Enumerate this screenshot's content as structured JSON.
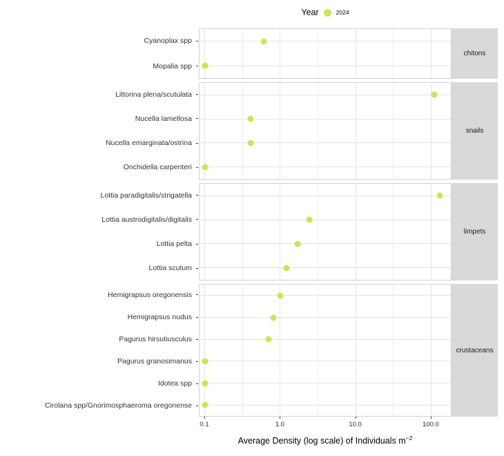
{
  "legend": {
    "title": "Year",
    "items": [
      {
        "label": "2024",
        "color": "#cbe558"
      }
    ]
  },
  "axis": {
    "x_title": "Average Density (log scale) of Individuals m",
    "x_title_sup": "−2",
    "x_tick_labels": [
      "0.1",
      "1.0",
      "10.0",
      "100.0"
    ]
  },
  "colors": {
    "point": "#cbe558",
    "grid_major": "#e4e4e4",
    "grid_minor": "#ededed",
    "panel_border": "#d2d2d2",
    "strip_bg": "#d9d9d9"
  },
  "chart_data": {
    "type": "scatter",
    "title": "",
    "xlabel": "Average Density (log scale) of Individuals m^-2",
    "x_scale": "log",
    "x_ticks": [
      0.1,
      1.0,
      10.0,
      100.0
    ],
    "x_minor_ticks": [
      0.316,
      3.16,
      31.6
    ],
    "xlim": [
      0.08,
      190
    ],
    "grid": true,
    "legend_position": "top",
    "legend_title": "Year",
    "series_name": "2024",
    "facets": [
      {
        "label": "chitons",
        "rows": [
          {
            "species": "Cyanoplax spp",
            "value": 0.6
          },
          {
            "species": "Mopalia spp",
            "value": 0.1
          }
        ]
      },
      {
        "label": "snails",
        "rows": [
          {
            "species": "Littorina plena/scutulata",
            "value": 110
          },
          {
            "species": "Nucella lamellosa",
            "value": 0.4
          },
          {
            "species": "Nucella emarginata/ostrina",
            "value": 0.4
          },
          {
            "species": "Onchidella carpenteri",
            "value": 0.1
          }
        ]
      },
      {
        "label": "limpets",
        "rows": [
          {
            "species": "Lottia paradigitalis/strigatella",
            "value": 130
          },
          {
            "species": "Lottia austrodigitalis/digitalis",
            "value": 2.4
          },
          {
            "species": "Lottia pelta",
            "value": 1.7
          },
          {
            "species": "Lottia scutum",
            "value": 1.2
          }
        ]
      },
      {
        "label": "crustaceans",
        "rows": [
          {
            "species": "Hemigrapsus oregonensis",
            "value": 1.0
          },
          {
            "species": "Hemigrapsus nudus",
            "value": 0.8
          },
          {
            "species": "Pagurus hirsutiusculus",
            "value": 0.7
          },
          {
            "species": "Pagurus granosimanus",
            "value": 0.1
          },
          {
            "species": "Idotea spp",
            "value": 0.1
          },
          {
            "species": "Cirolana spp/Gnorimosphaeroma oregonense",
            "value": 0.1
          }
        ]
      }
    ]
  }
}
